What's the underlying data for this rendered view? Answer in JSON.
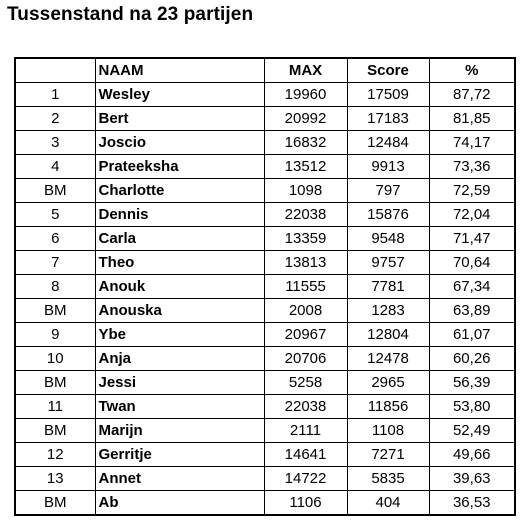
{
  "title": "Tussenstand na 23 partijen",
  "table": {
    "headers": {
      "rank": "",
      "name": "NAAM",
      "max": "MAX",
      "score": "Score",
      "pct": "%"
    },
    "rows": [
      {
        "rank": "1",
        "name": "Wesley",
        "max": "19960",
        "score": "17509",
        "pct": "87,72"
      },
      {
        "rank": "2",
        "name": "Bert",
        "max": "20992",
        "score": "17183",
        "pct": "81,85"
      },
      {
        "rank": "3",
        "name": "Joscio",
        "max": "16832",
        "score": "12484",
        "pct": "74,17"
      },
      {
        "rank": "4",
        "name": "Prateeksha",
        "max": "13512",
        "score": "9913",
        "pct": "73,36"
      },
      {
        "rank": "BM",
        "name": "Charlotte",
        "max": "1098",
        "score": "797",
        "pct": "72,59"
      },
      {
        "rank": "5",
        "name": "Dennis",
        "max": "22038",
        "score": "15876",
        "pct": "72,04"
      },
      {
        "rank": "6",
        "name": "Carla",
        "max": "13359",
        "score": "9548",
        "pct": "71,47"
      },
      {
        "rank": "7",
        "name": "Theo",
        "max": "13813",
        "score": "9757",
        "pct": "70,64"
      },
      {
        "rank": "8",
        "name": "Anouk",
        "max": "11555",
        "score": "7781",
        "pct": "67,34"
      },
      {
        "rank": "BM",
        "name": "Anouska",
        "max": "2008",
        "score": "1283",
        "pct": "63,89"
      },
      {
        "rank": "9",
        "name": "Ybe",
        "max": "20967",
        "score": "12804",
        "pct": "61,07"
      },
      {
        "rank": "10",
        "name": "Anja",
        "max": "20706",
        "score": "12478",
        "pct": "60,26"
      },
      {
        "rank": "BM",
        "name": "Jessi",
        "max": "5258",
        "score": "2965",
        "pct": "56,39"
      },
      {
        "rank": "11",
        "name": "Twan",
        "max": "22038",
        "score": "11856",
        "pct": "53,80"
      },
      {
        "rank": "BM",
        "name": "Marijn",
        "max": "2111",
        "score": "1108",
        "pct": "52,49"
      },
      {
        "rank": "12",
        "name": "Gerritje",
        "max": "14641",
        "score": "7271",
        "pct": "49,66"
      },
      {
        "rank": "13",
        "name": "Annet",
        "max": "14722",
        "score": "5835",
        "pct": "39,63"
      },
      {
        "rank": "BM",
        "name": "Ab",
        "max": "1106",
        "score": "404",
        "pct": "36,53"
      }
    ]
  }
}
